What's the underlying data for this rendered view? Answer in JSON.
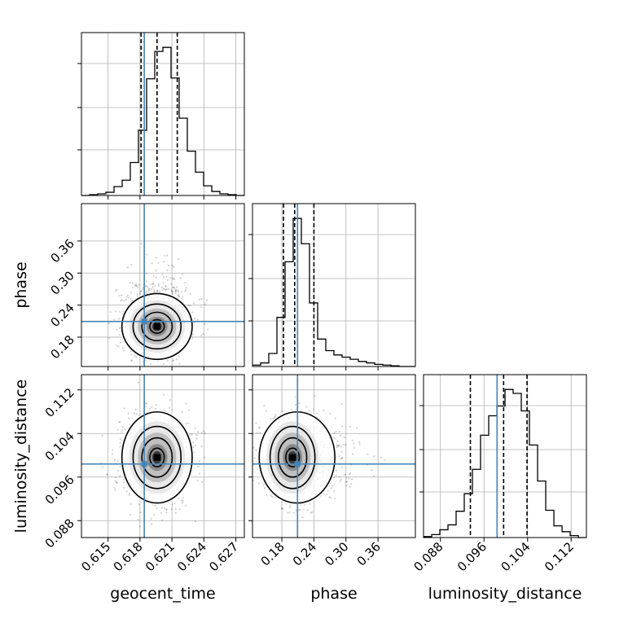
{
  "chart_data": {
    "type": "corner",
    "parameters": [
      "geocent_time",
      "phase",
      "luminosity_distance"
    ],
    "xlabels": [
      "geocent_time",
      "phase",
      "luminosity_distance"
    ],
    "ylabels": [
      "",
      "phase",
      "luminosity_distance"
    ],
    "ranges": [
      [
        0.6125,
        0.6278
      ],
      [
        0.125,
        0.43
      ],
      [
        0.0849,
        0.1148
      ]
    ],
    "ticks": {
      "geocent_time": [
        0.615,
        0.618,
        0.621,
        0.624,
        0.627
      ],
      "phase": [
        0.18,
        0.24,
        0.3,
        0.36
      ],
      "luminosity_distance": [
        0.088,
        0.096,
        0.104,
        0.112
      ]
    },
    "tick_labels": {
      "geocent_time": [
        "0.615",
        "0.618",
        "0.621",
        "0.624",
        "0.627"
      ],
      "phase": [
        "0.18",
        "0.24",
        "0.30",
        "0.36"
      ],
      "luminosity_distance": [
        "0.088",
        "0.096",
        "0.104",
        "0.112"
      ]
    },
    "truths": {
      "geocent_time": 0.6184,
      "phase": 0.2093,
      "luminosity_distance": 0.0984
    },
    "quantiles": {
      "geocent_time": [
        0.6181,
        0.6196,
        0.6215
      ],
      "phase": [
        0.183,
        0.204,
        0.24
      ],
      "luminosity_distance": [
        0.0935,
        0.0996,
        0.1039
      ]
    },
    "histograms": {
      "geocent_time": {
        "x0": 0.6125,
        "bin_width": 0.000765,
        "counts": [
          0,
          1,
          2,
          4,
          11,
          19,
          41,
          81,
          145,
          179,
          184,
          146,
          96,
          55,
          29,
          12,
          5,
          2,
          1,
          0
        ]
      },
      "phase": {
        "x0": 0.125,
        "bin_width": 0.01525,
        "counts": [
          2,
          5,
          18,
          68,
          145,
          205,
          170,
          88,
          38,
          22,
          16,
          13,
          10,
          7,
          5,
          3,
          2,
          1,
          0,
          0
        ]
      },
      "luminosity_distance": {
        "x0": 0.0849,
        "bin_width": 0.0014955,
        "counts": [
          1,
          3,
          8,
          13,
          27,
          45,
          70,
          105,
          125,
          135,
          152,
          148,
          130,
          95,
          58,
          28,
          12,
          6,
          2,
          0
        ]
      }
    },
    "scatter_2d": [
      {
        "x": "geocent_time",
        "y": "phase",
        "mean": [
          0.6196,
          0.2
        ],
        "std": [
          0.0015,
          0.028
        ],
        "corr": 0.05
      },
      {
        "x": "geocent_time",
        "y": "luminosity_distance",
        "mean": [
          0.6196,
          0.0996
        ],
        "std": [
          0.0015,
          0.0038
        ],
        "corr": 0.0
      },
      {
        "x": "phase",
        "y": "luminosity_distance",
        "mean": [
          0.2,
          0.0996
        ],
        "std": [
          0.028,
          0.0038
        ],
        "corr": -0.05
      }
    ],
    "grid": true,
    "colors": {
      "truth": "#4682b4",
      "hist": "#000000",
      "grid": "#b0b0b0"
    }
  }
}
